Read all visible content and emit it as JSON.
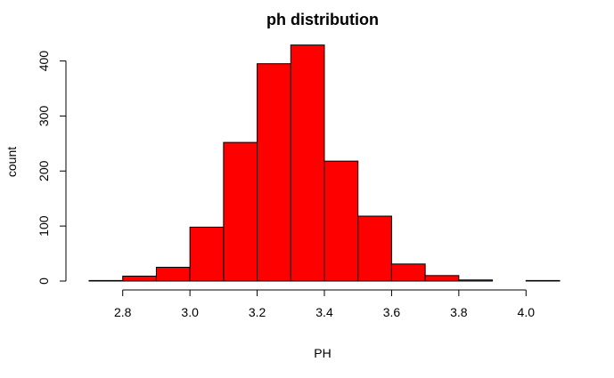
{
  "chart_data": {
    "type": "bar",
    "title": "ph distribution",
    "xlabel": "PH",
    "ylabel": "count",
    "bar_color": "#ff0000",
    "bar_edge_color": "#000000",
    "bin_edges": [
      2.7,
      2.8,
      2.9,
      3.0,
      3.1,
      3.2,
      3.3,
      3.4,
      3.5,
      3.6,
      3.7,
      3.8,
      3.9,
      4.0,
      4.1
    ],
    "values": [
      1,
      9,
      25,
      98,
      252,
      395,
      429,
      218,
      118,
      31,
      10,
      2,
      0,
      1
    ],
    "xlim": [
      2.7,
      4.1
    ],
    "ylim": [
      0,
      430
    ],
    "x_ticks": [
      2.8,
      3.0,
      3.2,
      3.4,
      3.6,
      3.8,
      4.0
    ],
    "x_tick_labels": [
      "2.8",
      "3.0",
      "3.2",
      "3.4",
      "3.6",
      "3.8",
      "4.0"
    ],
    "y_ticks": [
      0,
      100,
      200,
      300,
      400
    ],
    "y_tick_labels": [
      "0",
      "100",
      "200",
      "300",
      "400"
    ],
    "grid": false,
    "legend": "none"
  }
}
